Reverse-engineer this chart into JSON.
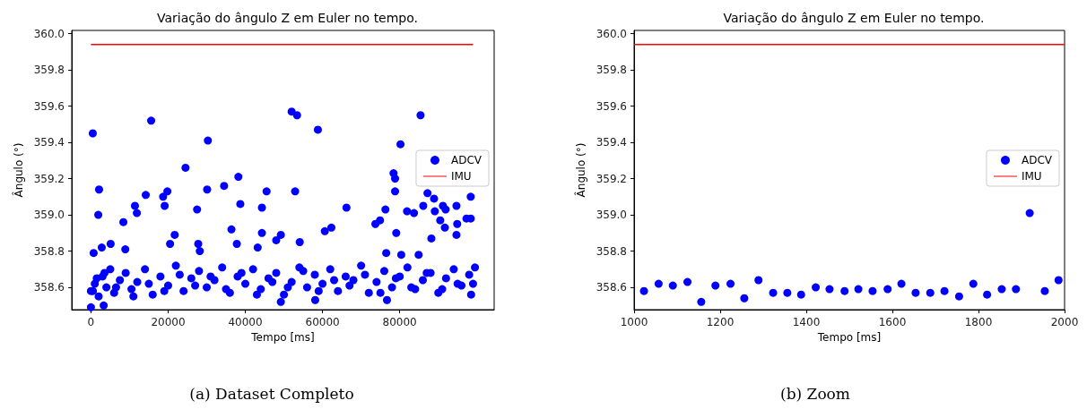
{
  "chart_data": [
    {
      "type": "scatter",
      "title": "Variação do ângulo Z em Euler no tempo.",
      "xlabel": "Tempo [ms]",
      "ylabel": "Ângulo (°)",
      "annotations": [
        "(a)  Dataset Completo"
      ],
      "xlim": [
        -4975,
        104475
      ],
      "xticks": [
        0,
        20000,
        40000,
        60000,
        80000
      ],
      "ylim": [
        358.477,
        360.018
      ],
      "yticks": [
        {
          "value": 358.6,
          "label": "358.6"
        },
        {
          "value": 358.8,
          "label": "358.8"
        },
        {
          "value": 359.0,
          "label": "359.0"
        },
        {
          "value": 359.2,
          "label": "359.2"
        },
        {
          "value": 359.4,
          "label": "359.4"
        },
        {
          "value": 359.6,
          "label": "359.6"
        },
        {
          "value": 359.8,
          "label": "359.8"
        },
        {
          "value": 360.0,
          "label": "360.0"
        }
      ],
      "grid": false,
      "legend": "right",
      "series": [
        {
          "name": "ADCV",
          "marker": "circle",
          "color": "#0000ff",
          "x": [
            470,
            15600,
            30300,
            52000,
            53400,
            58800,
            85400,
            80200,
            24500,
            2100,
            1900,
            14200,
            18700,
            19800,
            19100,
            11400,
            11900,
            8400,
            30100,
            27500,
            34500,
            38200,
            38700,
            45500,
            44300,
            52900,
            66200,
            21700,
            20500,
            27800,
            28200,
            36400,
            37800,
            44300,
            43200,
            48000,
            49200,
            54100,
            60600,
            62300,
            73700,
            74900,
            76300,
            78400,
            78800,
            78800,
            79100,
            81900,
            83700,
            86100,
            87200,
            88900,
            91200,
            91900,
            89100,
            90500,
            91700,
            94700,
            94900,
            94700,
            97300,
            98400,
            98400,
            88200,
            76500,
            80400,
            700,
            2800,
            5100,
            8900,
            84900,
            0,
            49200,
            76700,
            58100,
            3300,
            0,
            1000,
            2000,
            3000,
            4000,
            5000,
            6000,
            7500,
            9000,
            10500,
            12000,
            14000,
            16000,
            18000,
            20000,
            22000,
            24000,
            26000,
            28000,
            30000,
            32000,
            34000,
            36000,
            38000,
            40000,
            42000,
            44000,
            46000,
            48000,
            50000,
            52000,
            54000,
            56000,
            58000,
            60000,
            62000,
            64000,
            66000,
            68000,
            70000,
            72000,
            74000,
            76000,
            78000,
            80000,
            82000,
            84000,
            86000,
            88000,
            90000,
            92000,
            94000,
            96000,
            98000,
            99000,
            99500,
            500,
            1500,
            3500,
            6500,
            11000,
            15000,
            19000,
            23000,
            27000,
            31000,
            35000,
            39000,
            43000,
            47000,
            51000,
            55000,
            59000,
            63000,
            67000,
            71000,
            75000,
            79000,
            83000,
            87000,
            91000,
            95000,
            98500
          ],
          "values": [
            359.45,
            359.52,
            359.41,
            359.57,
            359.55,
            359.47,
            359.55,
            359.39,
            359.26,
            359.14,
            359.0,
            359.11,
            359.1,
            359.13,
            359.05,
            359.05,
            359.01,
            358.96,
            359.14,
            359.03,
            359.16,
            359.21,
            359.06,
            359.13,
            359.04,
            359.13,
            359.04,
            358.89,
            358.84,
            358.84,
            358.8,
            358.92,
            358.84,
            358.9,
            358.82,
            358.86,
            358.89,
            358.85,
            358.91,
            358.93,
            358.95,
            358.97,
            359.03,
            359.23,
            359.2,
            359.13,
            358.9,
            359.02,
            359.01,
            359.05,
            359.12,
            359.09,
            359.05,
            359.03,
            359.02,
            358.97,
            358.93,
            359.05,
            358.95,
            358.89,
            358.98,
            358.98,
            359.1,
            358.87,
            358.79,
            358.78,
            358.79,
            358.82,
            358.84,
            358.81,
            358.78,
            358.49,
            358.52,
            358.53,
            358.53,
            358.5,
            358.58,
            358.62,
            358.55,
            358.66,
            358.6,
            358.7,
            358.57,
            358.64,
            358.68,
            358.59,
            358.63,
            358.7,
            358.56,
            358.66,
            358.61,
            358.72,
            358.58,
            358.65,
            358.69,
            358.6,
            358.64,
            358.71,
            358.57,
            358.66,
            358.62,
            358.7,
            358.59,
            358.65,
            358.68,
            358.56,
            358.63,
            358.71,
            358.6,
            358.67,
            358.62,
            358.7,
            358.58,
            358.66,
            358.64,
            358.72,
            358.57,
            358.63,
            358.69,
            358.6,
            358.66,
            358.71,
            358.59,
            358.64,
            358.68,
            358.57,
            358.65,
            358.7,
            358.61,
            358.67,
            358.62,
            358.71,
            358.58,
            358.65,
            358.68,
            358.6,
            358.55,
            358.62,
            358.58,
            358.67,
            358.61,
            358.66,
            358.59,
            358.68,
            358.56,
            358.63,
            358.6,
            358.69,
            358.58,
            358.64,
            358.61,
            358.67,
            358.57,
            358.65,
            358.6,
            358.68,
            358.59,
            358.62,
            358.56
          ]
        },
        {
          "name": "IMU",
          "type": "line",
          "color": "#ff0000",
          "x": [
            0,
            99000
          ],
          "values": [
            359.94,
            359.94
          ]
        }
      ]
    },
    {
      "type": "scatter",
      "title": "Variação do ângulo Z em Euler no tempo.",
      "xlabel": "Tempo [ms]",
      "ylabel": "Ângulo (°)",
      "annotations": [
        "(b)  Zoom"
      ],
      "xlim": [
        1000,
        2000
      ],
      "xticks": [
        1000,
        1200,
        1400,
        1600,
        1800,
        2000
      ],
      "ylim": [
        358.477,
        360.018
      ],
      "yticks": [
        {
          "value": 358.6,
          "label": "358.6"
        },
        {
          "value": 358.8,
          "label": "358.8"
        },
        {
          "value": 359.0,
          "label": "359.0"
        },
        {
          "value": 359.2,
          "label": "359.2"
        },
        {
          "value": 359.4,
          "label": "359.4"
        },
        {
          "value": 359.6,
          "label": "359.6"
        },
        {
          "value": 359.8,
          "label": "359.8"
        },
        {
          "value": 360.0,
          "label": "360.0"
        }
      ],
      "grid": false,
      "legend": "right",
      "series": [
        {
          "name": "ADCV",
          "marker": "circle",
          "color": "#0000ff",
          "x": [
            1023,
            1057,
            1090,
            1124,
            1156,
            1189,
            1224,
            1256,
            1289,
            1323,
            1356,
            1388,
            1422,
            1454,
            1489,
            1521,
            1554,
            1589,
            1621,
            1654,
            1688,
            1721,
            1755,
            1788,
            1820,
            1854,
            1887,
            1919,
            1954,
            1986
          ],
          "values": [
            358.58,
            358.62,
            358.61,
            358.63,
            358.52,
            358.61,
            358.62,
            358.54,
            358.64,
            358.57,
            358.57,
            358.56,
            358.6,
            358.59,
            358.58,
            358.59,
            358.58,
            358.59,
            358.62,
            358.57,
            358.57,
            358.58,
            358.55,
            358.62,
            358.56,
            358.59,
            358.59,
            359.01,
            358.58,
            358.64
          ]
        },
        {
          "name": "IMU",
          "type": "line",
          "color": "#ff0000",
          "x": [
            1000,
            2000
          ],
          "values": [
            359.94,
            359.94
          ]
        }
      ]
    }
  ]
}
